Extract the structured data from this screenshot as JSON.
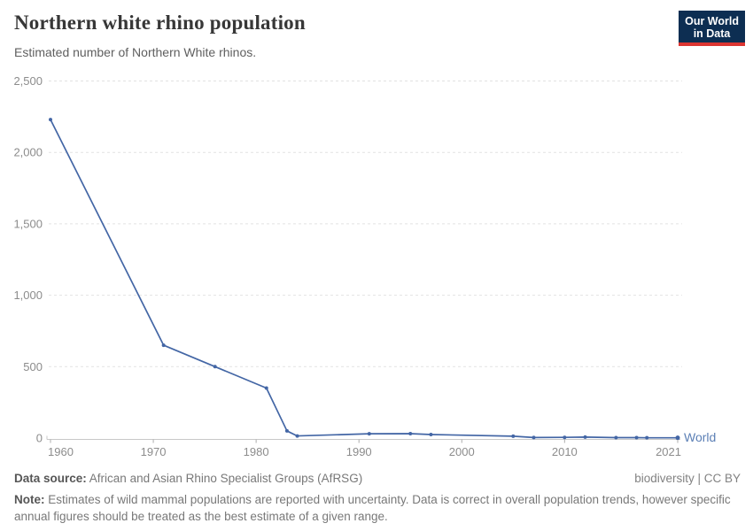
{
  "header": {
    "title": "Northern white rhino population",
    "subtitle": "Estimated number of Northern White rhinos.",
    "logo": {
      "line1": "Our World",
      "line2": "in Data",
      "bg_color": "#0d2e52",
      "accent_color": "#dc3531"
    }
  },
  "chart_data": {
    "type": "line",
    "title": "Northern white rhino population",
    "series": [
      {
        "name": "World",
        "x": [
          1960,
          1971,
          1976,
          1981,
          1983,
          1984,
          1991,
          1995,
          1997,
          2005,
          2007,
          2010,
          2012,
          2015,
          2017,
          2018,
          2021
        ],
        "values": [
          2230,
          650,
          500,
          350,
          50,
          15,
          30,
          31,
          25,
          13,
          4,
          5,
          7,
          3,
          3,
          2,
          2
        ]
      }
    ],
    "xlabel": "",
    "ylabel": "",
    "xlim": [
      1960,
      2021
    ],
    "ylim": [
      0,
      2500
    ],
    "xticks": [
      1960,
      1970,
      1980,
      1990,
      2000,
      2010,
      2021
    ],
    "yticks": [
      0,
      500,
      1000,
      1500,
      2000,
      2500
    ],
    "ytick_labels": [
      "0",
      "500",
      "1,000",
      "1,500",
      "2,000",
      "2,500"
    ],
    "grid": "horizontal-dashed",
    "legend_position": "end-of-line",
    "line_color": "#4366a5",
    "marker": "dot",
    "entity_label": "World",
    "entity_label_color": "#5b7fb5",
    "grid_color": "#e2e2e2",
    "axis_color": "#c8c8c8",
    "tick_text_color": "#8c8c8c"
  },
  "footer": {
    "datasource_label": "Data source:",
    "datasource_text": "African and Asian Rhino Specialist Groups (AfRSG)",
    "license": "biodiversity | CC BY",
    "note_label": "Note:",
    "note_text": "Estimates of wild mammal populations are reported with uncertainty. Data is correct in overall population trends, however specific annual figures should be treated as the best estimate of a given range."
  }
}
